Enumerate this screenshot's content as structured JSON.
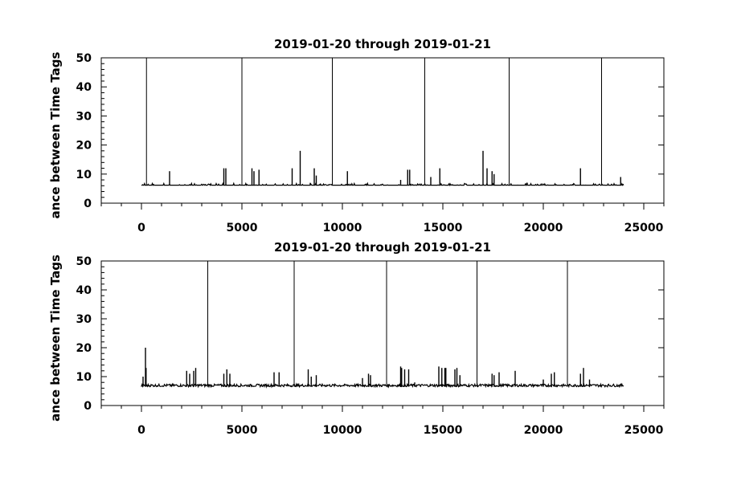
{
  "chart_data": [
    {
      "type": "line",
      "title": "2019-01-20 through 2019-01-21",
      "xlabel": "",
      "ylabel": "ance between Time Tags",
      "xlim": [
        -2000,
        26000
      ],
      "ylim": [
        0,
        50
      ],
      "xticks": [
        0,
        5000,
        10000,
        15000,
        20000,
        25000
      ],
      "xtick_labels": [
        "0",
        "5000",
        "10000",
        "15000",
        "20000",
        "25000"
      ],
      "yticks": [
        0,
        10,
        20,
        30,
        40,
        50
      ],
      "ytick_labels": [
        "0",
        "10",
        "20",
        "30",
        "40",
        "50"
      ],
      "grid": false,
      "baseline": 6.2,
      "x_range": [
        0,
        24000
      ],
      "series": [
        {
          "x": [
            250,
            1400,
            4100,
            4200,
            5000,
            5500,
            5600,
            5850,
            7500,
            7900,
            8400,
            8600,
            8700,
            9500,
            10250,
            12900,
            13250,
            13350,
            14100,
            14400,
            14850,
            17000,
            17200,
            17450,
            17550,
            18300,
            19200,
            21850,
            22900,
            23850
          ],
          "y": [
            50,
            11,
            12,
            12,
            50,
            12,
            11,
            11.5,
            12,
            18,
            7,
            12,
            9.5,
            50,
            11,
            8,
            11.5,
            11.5,
            50,
            9,
            12,
            18,
            12,
            11,
            10,
            50,
            7,
            12,
            50,
            9
          ]
        }
      ]
    },
    {
      "type": "line",
      "title": "2019-01-20 through 2019-01-21",
      "xlabel": "",
      "ylabel": "ance between Time Tags",
      "xlim": [
        -2000,
        26000
      ],
      "ylim": [
        0,
        50
      ],
      "xticks": [
        0,
        5000,
        10000,
        15000,
        20000,
        25000
      ],
      "xtick_labels": [
        "0",
        "5000",
        "10000",
        "15000",
        "20000",
        "25000"
      ],
      "yticks": [
        0,
        10,
        20,
        30,
        40,
        50
      ],
      "ytick_labels": [
        "0",
        "10",
        "20",
        "30",
        "40",
        "50"
      ],
      "grid": false,
      "baseline": 6.5,
      "x_range": [
        0,
        24000
      ],
      "series": [
        {
          "x": [
            80,
            200,
            230,
            2250,
            2400,
            2600,
            2700,
            3300,
            4100,
            4250,
            4400,
            6600,
            6850,
            7600,
            8300,
            8450,
            8700,
            11000,
            11300,
            11400,
            12200,
            12900,
            12950,
            13100,
            13300,
            13600,
            14800,
            14950,
            15100,
            15150,
            15600,
            15700,
            15850,
            16700,
            17450,
            17550,
            17800,
            18600,
            20000,
            20400,
            20550,
            21200,
            21850,
            22000,
            22300
          ],
          "y": [
            10,
            20,
            13,
            12,
            11,
            12,
            13,
            50,
            11,
            12.5,
            11,
            11.5,
            11.5,
            50,
            12.5,
            10,
            10.5,
            9.5,
            11,
            10.5,
            50,
            13.5,
            13,
            12.5,
            12.5,
            8,
            13.5,
            13,
            13,
            13,
            12.5,
            13,
            10.5,
            50,
            11,
            10.5,
            11.5,
            12,
            9,
            11,
            11.5,
            50,
            11,
            13,
            9
          ]
        }
      ]
    }
  ]
}
